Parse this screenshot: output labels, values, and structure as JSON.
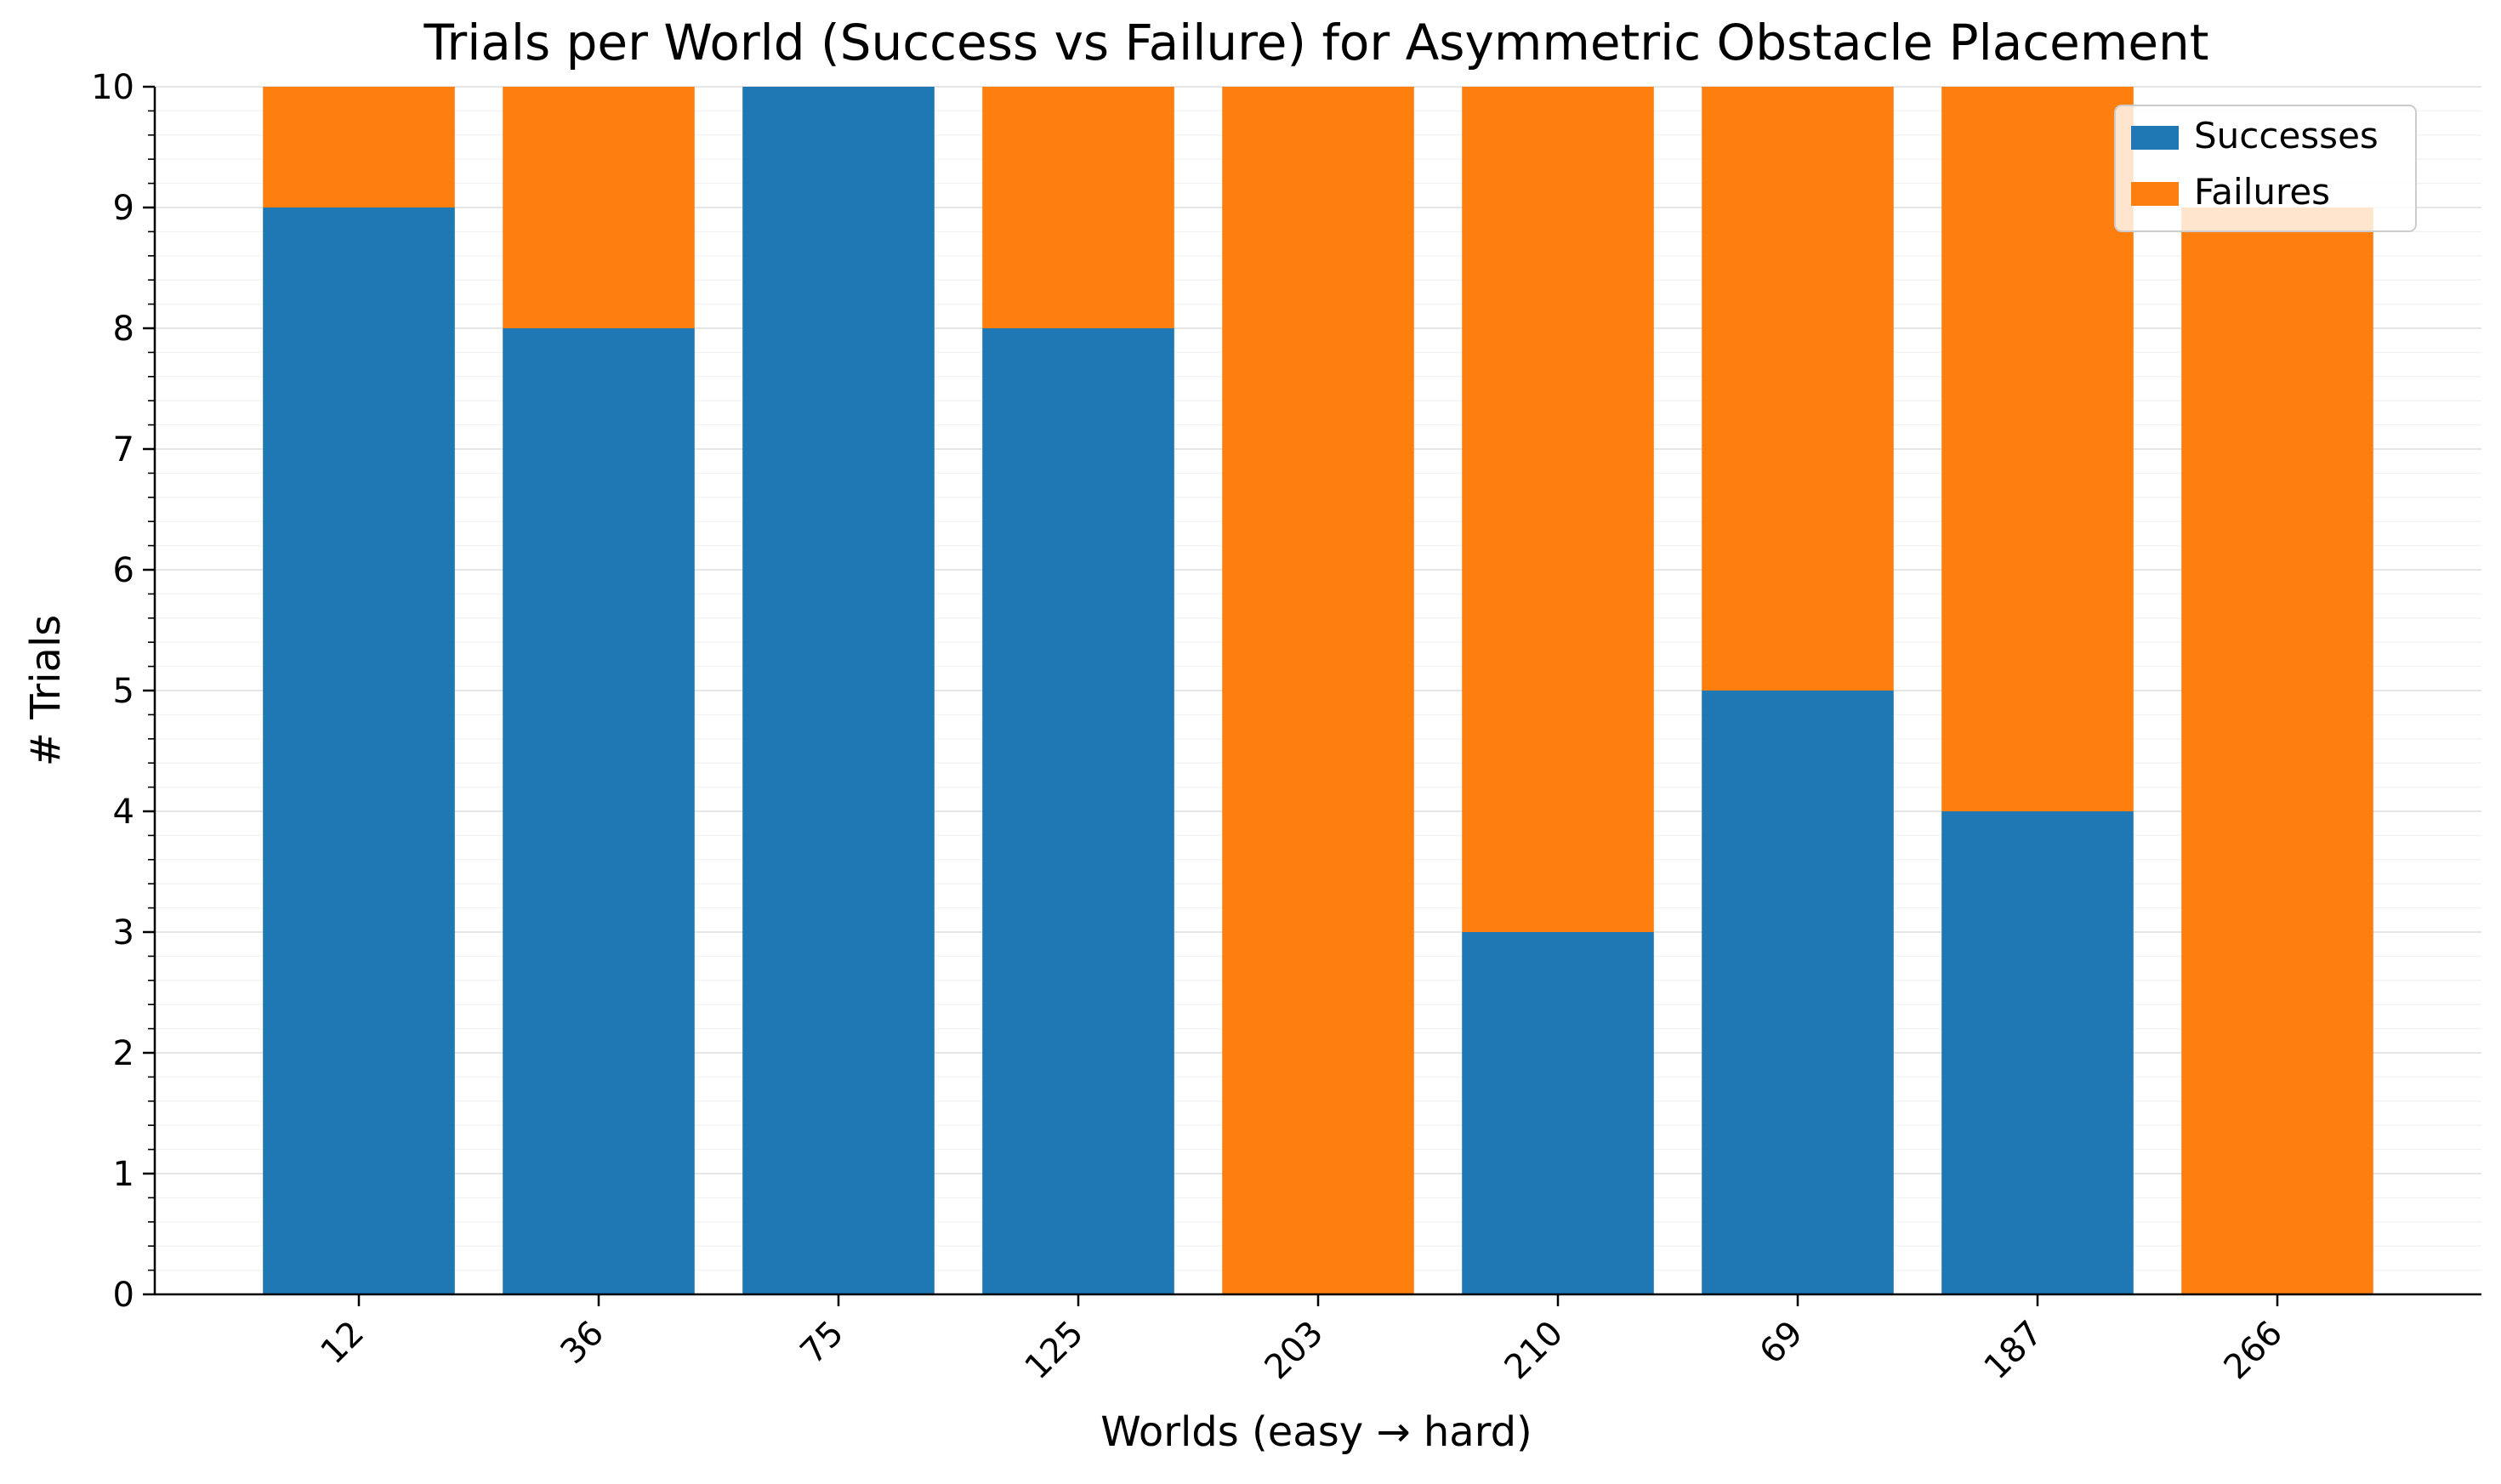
{
  "chart_data": {
    "type": "bar",
    "stacked": true,
    "title": "Trials per World (Success vs Failure) for Asymmetric Obstacle Placement",
    "xlabel": "Worlds (easy → hard)",
    "ylabel": "# Trials",
    "categories": [
      "12",
      "36",
      "75",
      "125",
      "203",
      "210",
      "69",
      "187",
      "266"
    ],
    "series": [
      {
        "name": "Successes",
        "color": "#1f77b4",
        "values": [
          9,
          8,
          10,
          8,
          0,
          3,
          5,
          4,
          0
        ]
      },
      {
        "name": "Failures",
        "color": "#ff7f0e",
        "values": [
          1,
          2,
          0,
          2,
          10,
          7,
          5,
          6,
          9
        ]
      }
    ],
    "ylim": [
      0,
      10
    ],
    "yticks": [
      "0",
      "1",
      "2",
      "3",
      "4",
      "5",
      "6",
      "7",
      "8",
      "9",
      "10"
    ],
    "grid": true,
    "legend": {
      "position": "top-right"
    }
  }
}
